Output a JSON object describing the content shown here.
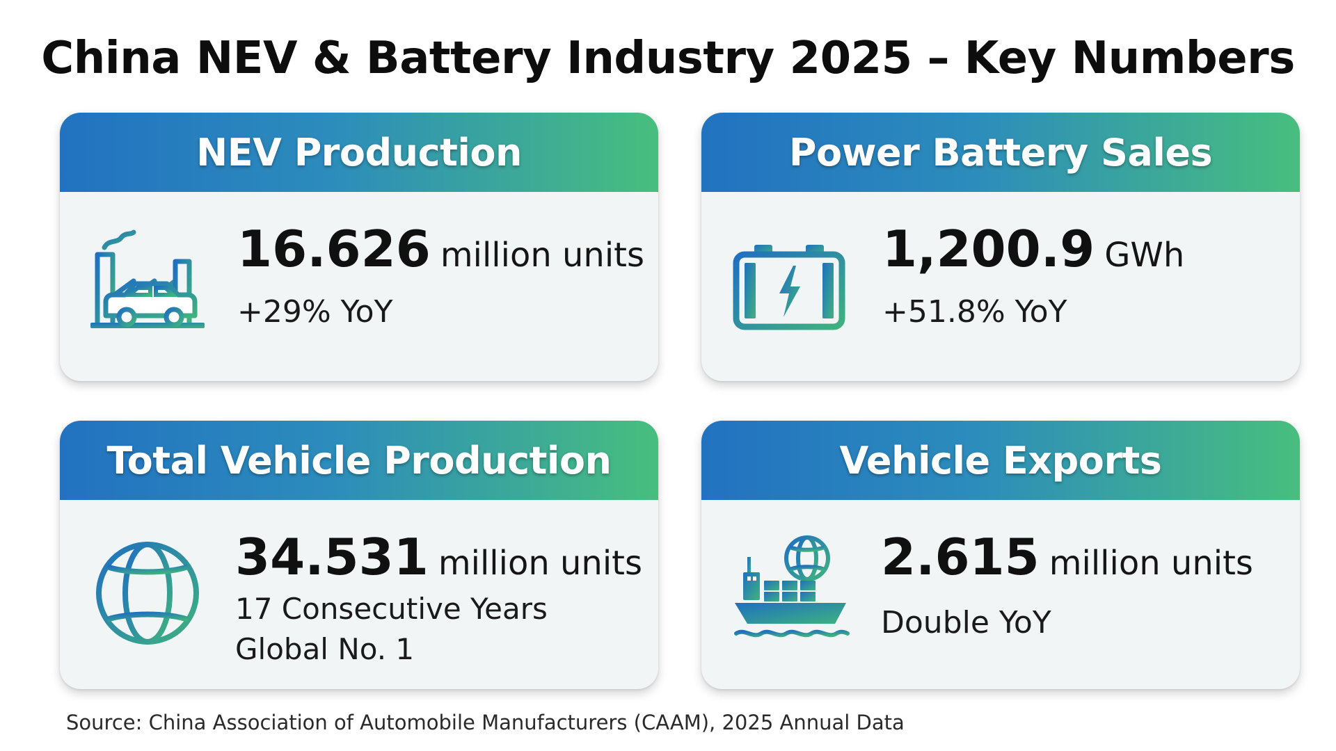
{
  "title": "China NEV & Battery Industry 2025 – Key Numbers",
  "colors": {
    "header_start": "#2272c0",
    "header_end": "#48be7e",
    "card_background": "#f2f5f5"
  },
  "cards": [
    {
      "title": "NEV Production",
      "icon": "factory-car-icon",
      "value": "16.626",
      "unit": "million units",
      "lines": [
        "+29% YoY"
      ]
    },
    {
      "title": "Power Battery Sales",
      "icon": "battery-icon",
      "value": "1,200.9",
      "unit": "GWh",
      "lines": [
        "+51.8% YoY"
      ]
    },
    {
      "title": "Total Vehicle Production",
      "icon": "globe-icon",
      "value": "34.531",
      "unit": "million units",
      "lines": [
        "17 Consecutive Years",
        "Global No. 1"
      ]
    },
    {
      "title": "Vehicle Exports",
      "icon": "cargo-ship-icon",
      "value": "2.615",
      "unit": "million units",
      "lines": [
        "Double YoY"
      ]
    }
  ],
  "source": "Source: China Association of Automobile Manufacturers (CAAM), 2025 Annual Data"
}
